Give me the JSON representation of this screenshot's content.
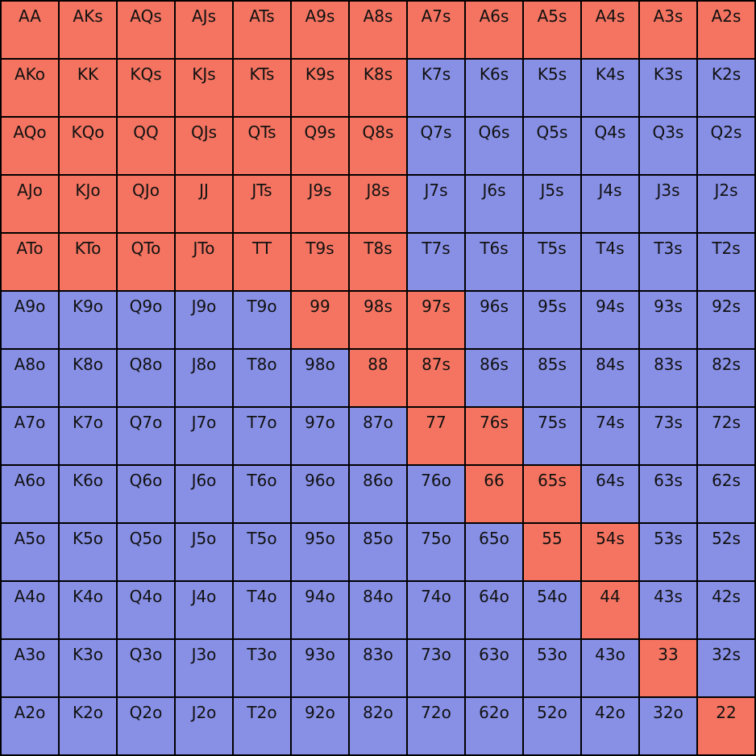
{
  "colors": {
    "in_range": "#f47461",
    "out_range": "#8890e6",
    "grid_line": "#000000"
  },
  "ranks": [
    "A",
    "K",
    "Q",
    "J",
    "T",
    "9",
    "8",
    "7",
    "6",
    "5",
    "4",
    "3",
    "2"
  ],
  "hand_matrix": [
    {
      "hands": [
        "AA",
        "AKs",
        "AQs",
        "AJs",
        "ATs",
        "A9s",
        "A8s",
        "A7s",
        "A6s",
        "A5s",
        "A4s",
        "A3s",
        "A2s"
      ],
      "in_range": [
        true,
        true,
        true,
        true,
        true,
        true,
        true,
        true,
        true,
        true,
        true,
        true,
        true
      ]
    },
    {
      "hands": [
        "AKo",
        "KK",
        "KQs",
        "KJs",
        "KTs",
        "K9s",
        "K8s",
        "K7s",
        "K6s",
        "K5s",
        "K4s",
        "K3s",
        "K2s"
      ],
      "in_range": [
        true,
        true,
        true,
        true,
        true,
        true,
        true,
        false,
        false,
        false,
        false,
        false,
        false
      ]
    },
    {
      "hands": [
        "AQo",
        "KQo",
        "QQ",
        "QJs",
        "QTs",
        "Q9s",
        "Q8s",
        "Q7s",
        "Q6s",
        "Q5s",
        "Q4s",
        "Q3s",
        "Q2s"
      ],
      "in_range": [
        true,
        true,
        true,
        true,
        true,
        true,
        true,
        false,
        false,
        false,
        false,
        false,
        false
      ]
    },
    {
      "hands": [
        "AJo",
        "KJo",
        "QJo",
        "JJ",
        "JTs",
        "J9s",
        "J8s",
        "J7s",
        "J6s",
        "J5s",
        "J4s",
        "J3s",
        "J2s"
      ],
      "in_range": [
        true,
        true,
        true,
        true,
        true,
        true,
        true,
        false,
        false,
        false,
        false,
        false,
        false
      ]
    },
    {
      "hands": [
        "ATo",
        "KTo",
        "QTo",
        "JTo",
        "TT",
        "T9s",
        "T8s",
        "T7s",
        "T6s",
        "T5s",
        "T4s",
        "T3s",
        "T2s"
      ],
      "in_range": [
        true,
        true,
        true,
        true,
        true,
        true,
        true,
        false,
        false,
        false,
        false,
        false,
        false
      ]
    },
    {
      "hands": [
        "A9o",
        "K9o",
        "Q9o",
        "J9o",
        "T9o",
        "99",
        "98s",
        "97s",
        "96s",
        "95s",
        "94s",
        "93s",
        "92s"
      ],
      "in_range": [
        false,
        false,
        false,
        false,
        false,
        true,
        true,
        true,
        false,
        false,
        false,
        false,
        false
      ]
    },
    {
      "hands": [
        "A8o",
        "K8o",
        "Q8o",
        "J8o",
        "T8o",
        "98o",
        "88",
        "87s",
        "86s",
        "85s",
        "84s",
        "83s",
        "82s"
      ],
      "in_range": [
        false,
        false,
        false,
        false,
        false,
        false,
        true,
        true,
        false,
        false,
        false,
        false,
        false
      ]
    },
    {
      "hands": [
        "A7o",
        "K7o",
        "Q7o",
        "J7o",
        "T7o",
        "97o",
        "87o",
        "77",
        "76s",
        "75s",
        "74s",
        "73s",
        "72s"
      ],
      "in_range": [
        false,
        false,
        false,
        false,
        false,
        false,
        false,
        true,
        true,
        false,
        false,
        false,
        false
      ]
    },
    {
      "hands": [
        "A6o",
        "K6o",
        "Q6o",
        "J6o",
        "T6o",
        "96o",
        "86o",
        "76o",
        "66",
        "65s",
        "64s",
        "63s",
        "62s"
      ],
      "in_range": [
        false,
        false,
        false,
        false,
        false,
        false,
        false,
        false,
        true,
        true,
        false,
        false,
        false
      ]
    },
    {
      "hands": [
        "A5o",
        "K5o",
        "Q5o",
        "J5o",
        "T5o",
        "95o",
        "85o",
        "75o",
        "65o",
        "55",
        "54s",
        "53s",
        "52s"
      ],
      "in_range": [
        false,
        false,
        false,
        false,
        false,
        false,
        false,
        false,
        false,
        true,
        true,
        false,
        false
      ]
    },
    {
      "hands": [
        "A4o",
        "K4o",
        "Q4o",
        "J4o",
        "T4o",
        "94o",
        "84o",
        "74o",
        "64o",
        "54o",
        "44",
        "43s",
        "42s"
      ],
      "in_range": [
        false,
        false,
        false,
        false,
        false,
        false,
        false,
        false,
        false,
        false,
        true,
        false,
        false
      ]
    },
    {
      "hands": [
        "A3o",
        "K3o",
        "Q3o",
        "J3o",
        "T3o",
        "93o",
        "83o",
        "73o",
        "63o",
        "53o",
        "43o",
        "33",
        "32s"
      ],
      "in_range": [
        false,
        false,
        false,
        false,
        false,
        false,
        false,
        false,
        false,
        false,
        false,
        true,
        false
      ]
    },
    {
      "hands": [
        "A2o",
        "K2o",
        "Q2o",
        "J2o",
        "T2o",
        "92o",
        "82o",
        "72o",
        "62o",
        "52o",
        "42o",
        "32o",
        "22"
      ],
      "in_range": [
        false,
        false,
        false,
        false,
        false,
        false,
        false,
        false,
        false,
        false,
        false,
        false,
        true
      ]
    }
  ]
}
